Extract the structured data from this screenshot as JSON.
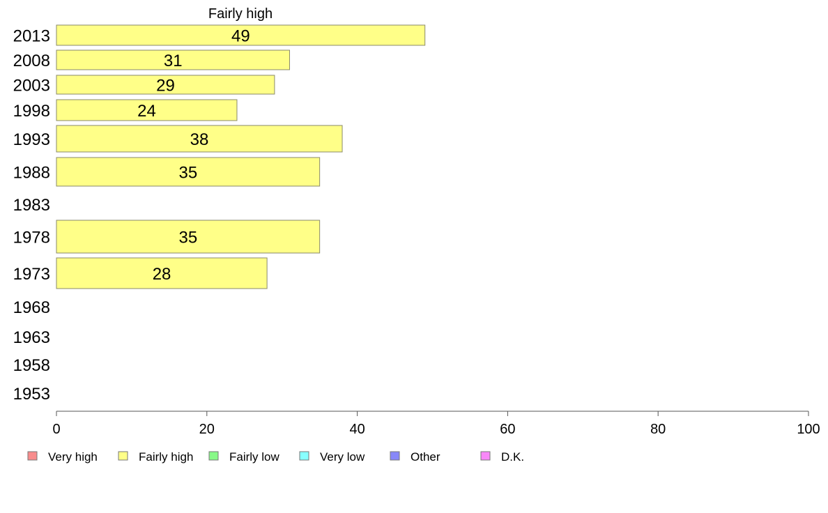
{
  "chart_data": {
    "type": "bar",
    "orientation": "horizontal",
    "title": "Fairly high",
    "categories": [
      "2013",
      "2008",
      "2003",
      "1998",
      "1993",
      "1988",
      "1983",
      "1978",
      "1973",
      "1968",
      "1963",
      "1958",
      "1953"
    ],
    "values": [
      49,
      31,
      29,
      24,
      38,
      35,
      null,
      35,
      28,
      null,
      null,
      null,
      null
    ],
    "value_labels": [
      "49",
      "31",
      "29",
      "24",
      "38",
      "35",
      "",
      "35",
      "28",
      "",
      "",
      "",
      ""
    ],
    "xlim": [
      0,
      100
    ],
    "xticks": [
      "0",
      "20",
      "40",
      "60",
      "80",
      "100"
    ],
    "xlabel": "",
    "ylabel": "",
    "bar_color": "#ffff88",
    "legend_position": "bottom",
    "legend": [
      {
        "name": "Very high",
        "color": "#f88c8c"
      },
      {
        "name": "Fairly high",
        "color": "#ffff88"
      },
      {
        "name": "Fairly low",
        "color": "#88f888"
      },
      {
        "name": "Very low",
        "color": "#88ffff"
      },
      {
        "name": "Other",
        "color": "#8888f8"
      },
      {
        "name": "D.K.",
        "color": "#f888f8"
      }
    ]
  }
}
